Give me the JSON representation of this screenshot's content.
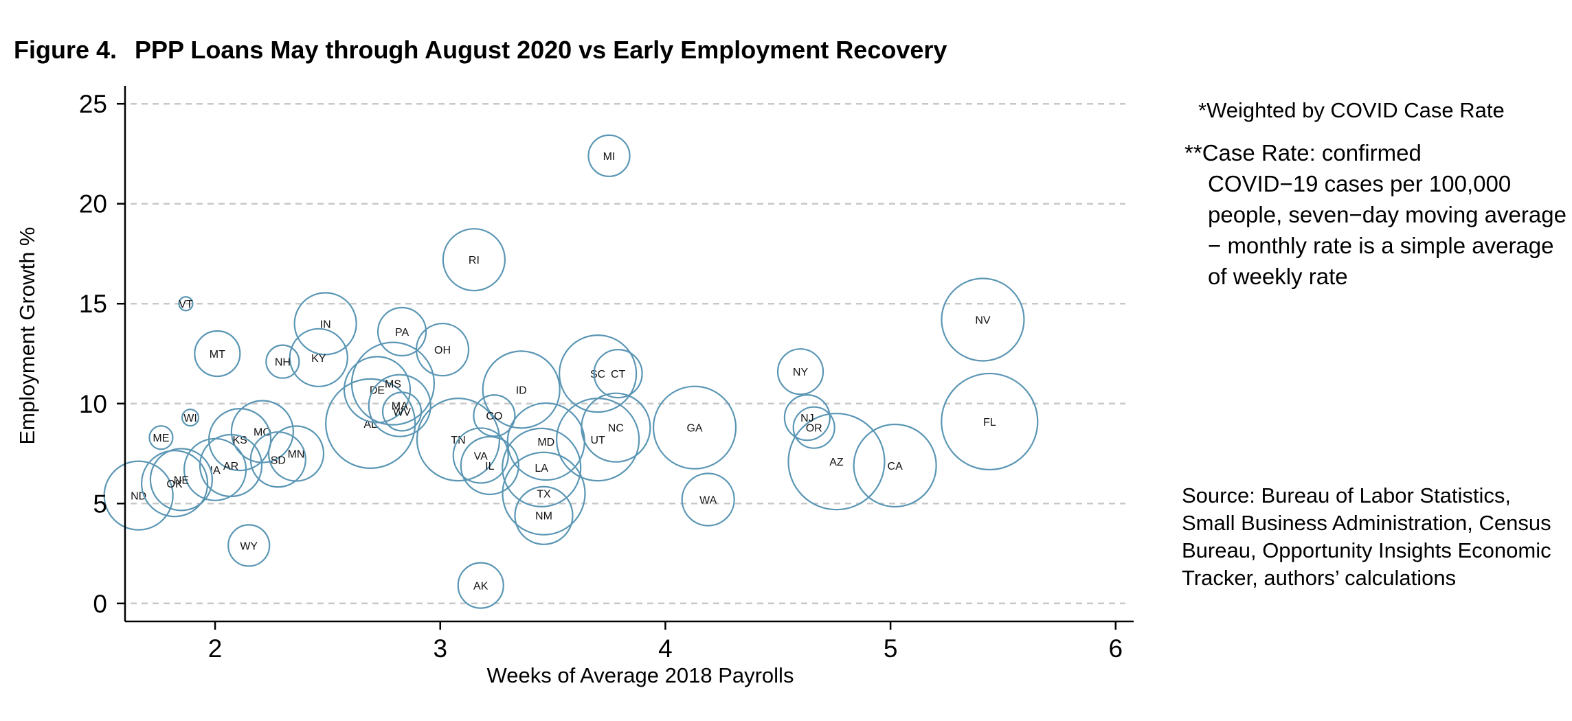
{
  "figure_label": "Figure 4.",
  "figure_title": "PPP Loans May through August 2020 vs Early Employment Recovery",
  "notes": {
    "weight": "*Weighted by COVID Case Rate",
    "case_prefix": "**",
    "case_first": "Case Rate: confirmed",
    "case_rest": "COVID−19 cases per 100,000 people, seven−day moving average − monthly rate is a simple average of weekly rate",
    "source": "Source: Bureau of Labor Statistics, Small Business Administration, Census Bureau, Opportunity Insights Economic Tracker, authors’ calculations"
  },
  "colors": {
    "bubble": "#5a96b4",
    "grid": "#c8c8c8",
    "axis": "#000000"
  },
  "chart_data": {
    "type": "scatter",
    "title": "PPP Loans May through August 2020 vs Early Employment Recovery",
    "xlabel": "Weeks of Average 2018 Payrolls",
    "ylabel": "Employment Growth %",
    "xlim": [
      1.6,
      6.08
    ],
    "ylim": [
      -0.9,
      25.9
    ],
    "xticks": [
      2,
      3,
      4,
      5,
      6
    ],
    "yticks": [
      0,
      5,
      10,
      15,
      20,
      25
    ],
    "grid": "horizontal dashed",
    "bubble_size_by": "COVID case rate",
    "points": [
      {
        "label": "MI",
        "x": 3.75,
        "y": 22.4,
        "weight": 30
      },
      {
        "label": "RI",
        "x": 3.15,
        "y": 17.2,
        "weight": 45
      },
      {
        "label": "NV",
        "x": 5.41,
        "y": 14.2,
        "weight": 60
      },
      {
        "label": "VT",
        "x": 1.87,
        "y": 15.0,
        "weight": 10
      },
      {
        "label": "IN",
        "x": 2.49,
        "y": 14.0,
        "weight": 45
      },
      {
        "label": "PA",
        "x": 2.83,
        "y": 13.6,
        "weight": 35
      },
      {
        "label": "OH",
        "x": 3.01,
        "y": 12.7,
        "weight": 38
      },
      {
        "label": "MT",
        "x": 2.01,
        "y": 12.5,
        "weight": 33
      },
      {
        "label": "NH",
        "x": 2.3,
        "y": 12.1,
        "weight": 24
      },
      {
        "label": "KY",
        "x": 2.46,
        "y": 12.3,
        "weight": 42
      },
      {
        "label": "NY",
        "x": 4.6,
        "y": 11.6,
        "weight": 33
      },
      {
        "label": "CT",
        "x": 3.79,
        "y": 11.5,
        "weight": 35
      },
      {
        "label": "SC",
        "x": 3.7,
        "y": 11.5,
        "weight": 56
      },
      {
        "label": "ID",
        "x": 3.36,
        "y": 10.7,
        "weight": 56
      },
      {
        "label": "MS",
        "x": 2.79,
        "y": 11.0,
        "weight": 60
      },
      {
        "label": "DE",
        "x": 2.72,
        "y": 10.7,
        "weight": 48
      },
      {
        "label": "MA",
        "x": 2.82,
        "y": 9.9,
        "weight": 45
      },
      {
        "label": "WV",
        "x": 2.83,
        "y": 9.6,
        "weight": 28
      },
      {
        "label": "FL",
        "x": 5.44,
        "y": 9.1,
        "weight": 70
      },
      {
        "label": "WI",
        "x": 1.89,
        "y": 9.3,
        "weight": 12
      },
      {
        "label": "CO",
        "x": 3.24,
        "y": 9.4,
        "weight": 30
      },
      {
        "label": "NJ",
        "x": 4.63,
        "y": 9.3,
        "weight": 33
      },
      {
        "label": "OR",
        "x": 4.66,
        "y": 8.8,
        "weight": 30
      },
      {
        "label": "GA",
        "x": 4.13,
        "y": 8.8,
        "weight": 60
      },
      {
        "label": "NC",
        "x": 3.78,
        "y": 8.8,
        "weight": 50
      },
      {
        "label": "AL",
        "x": 2.69,
        "y": 9.0,
        "weight": 65
      },
      {
        "label": "MO",
        "x": 2.21,
        "y": 8.6,
        "weight": 45
      },
      {
        "label": "ME",
        "x": 1.76,
        "y": 8.3,
        "weight": 17
      },
      {
        "label": "KS",
        "x": 2.11,
        "y": 8.2,
        "weight": 45
      },
      {
        "label": "TN",
        "x": 3.08,
        "y": 8.2,
        "weight": 60
      },
      {
        "label": "UT",
        "x": 3.7,
        "y": 8.2,
        "weight": 60
      },
      {
        "label": "MD",
        "x": 3.47,
        "y": 8.1,
        "weight": 56
      },
      {
        "label": "MN",
        "x": 2.36,
        "y": 7.5,
        "weight": 40
      },
      {
        "label": "SD",
        "x": 2.28,
        "y": 7.2,
        "weight": 40
      },
      {
        "label": "AZ",
        "x": 4.76,
        "y": 7.1,
        "weight": 70
      },
      {
        "label": "CA",
        "x": 5.02,
        "y": 6.9,
        "weight": 60
      },
      {
        "label": "VA",
        "x": 3.18,
        "y": 7.4,
        "weight": 40
      },
      {
        "label": "IL",
        "x": 3.22,
        "y": 6.9,
        "weight": 42
      },
      {
        "label": "LA",
        "x": 3.45,
        "y": 6.8,
        "weight": 57
      },
      {
        "label": "AR",
        "x": 2.07,
        "y": 6.9,
        "weight": 45
      },
      {
        "label": "IA",
        "x": 2.0,
        "y": 6.7,
        "weight": 45
      },
      {
        "label": "NE",
        "x": 1.85,
        "y": 6.2,
        "weight": 45
      },
      {
        "label": "OK",
        "x": 1.82,
        "y": 6.0,
        "weight": 48
      },
      {
        "label": "ND",
        "x": 1.66,
        "y": 5.4,
        "weight": 50
      },
      {
        "label": "WA",
        "x": 4.19,
        "y": 5.2,
        "weight": 38
      },
      {
        "label": "TX",
        "x": 3.46,
        "y": 5.5,
        "weight": 60
      },
      {
        "label": "NM",
        "x": 3.46,
        "y": 4.4,
        "weight": 42
      },
      {
        "label": "WY",
        "x": 2.15,
        "y": 2.9,
        "weight": 30
      },
      {
        "label": "AK",
        "x": 3.18,
        "y": 0.9,
        "weight": 33
      }
    ]
  }
}
